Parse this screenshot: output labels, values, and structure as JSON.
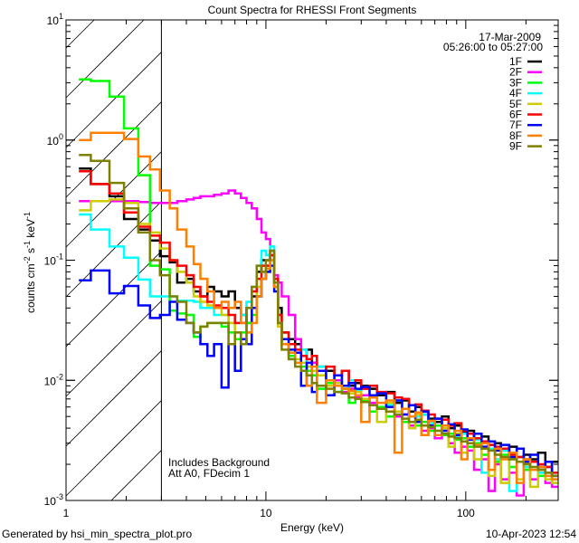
{
  "chart_data": {
    "type": "line",
    "title": "Count Spectra for RHESSI Front Segments",
    "xlabel": "Energy (keV)",
    "ylabel": {
      "base": "counts cm",
      "e1": "-2",
      "s": " s",
      "e2": "-1",
      "k": " keV",
      "e3": "-1"
    },
    "xscale": "log",
    "yscale": "log",
    "xlim": [
      1,
      290
    ],
    "ylim": [
      0.001,
      10
    ],
    "x_ticks": [
      {
        "value": 1,
        "label": "1"
      },
      {
        "value": 10,
        "label": "10"
      },
      {
        "value": 100,
        "label": "100"
      }
    ],
    "y_ticks": [
      {
        "value": 10,
        "base": "10",
        "exp": "1"
      },
      {
        "value": 1,
        "base": "10",
        "exp": "0"
      },
      {
        "value": 0.1,
        "base": "10",
        "exp": "-1"
      },
      {
        "value": 0.01,
        "base": "10",
        "exp": "-2"
      },
      {
        "value": 0.001,
        "base": "10",
        "exp": "-3"
      }
    ],
    "legend_placement": "top-right",
    "date": "17-Mar-2009",
    "time_range": "05:26:00 to 05:27:00",
    "annotations": [
      "Includes Background",
      "Att A0, FDecim 1"
    ],
    "excluded_region_keV": [
      1,
      3
    ],
    "energy_edges": [
      1.16,
      1.33,
      1.65,
      1.95,
      2.3,
      2.63,
      2.95,
      3.3,
      3.6,
      4.0,
      4.35,
      4.7,
      5.1,
      5.5,
      6.0,
      6.5,
      7.0,
      7.5,
      8.0,
      8.5,
      9.0,
      9.5,
      10.0,
      10.5,
      11.0,
      11.5,
      12,
      13,
      14,
      15,
      16,
      17,
      18,
      20,
      22,
      24,
      26,
      28,
      30,
      33,
      36,
      40,
      44,
      48,
      52,
      56,
      60,
      65,
      70,
      76,
      82,
      88,
      95,
      102,
      110,
      120,
      130,
      140,
      150,
      165,
      180,
      195,
      210,
      230,
      250,
      270,
      290
    ],
    "series": [
      {
        "name": "1F",
        "color": "#000000",
        "values": [
          0.58,
          0.43,
          0.34,
          0.22,
          0.18,
          0.146,
          0.108,
          0.096,
          0.065,
          0.07,
          0.055,
          0.05,
          0.06,
          0.055,
          0.05,
          0.055,
          0.04,
          0.035,
          0.03,
          0.05,
          0.08,
          0.1,
          0.1,
          0.12,
          0.07,
          0.04,
          0.025,
          0.022,
          0.02,
          0.016,
          0.018,
          0.014,
          0.013,
          0.012,
          0.011,
          0.012,
          0.009,
          0.0095,
          0.009,
          0.0085,
          0.0075,
          0.008,
          0.0065,
          0.0068,
          0.0055,
          0.006,
          0.0052,
          0.0048,
          0.0045,
          0.005,
          0.004,
          0.0042,
          0.0037,
          0.0038,
          0.0033,
          0.0034,
          0.0029,
          0.003,
          0.0026,
          0.0028,
          0.0023,
          0.0024,
          0.0022,
          0.0025,
          0.0019,
          0.0021
        ]
      },
      {
        "name": "2F",
        "color": "#ff00ff",
        "values": [
          0.31,
          0.31,
          0.31,
          0.31,
          0.305,
          0.3,
          0.3,
          0.3,
          0.31,
          0.32,
          0.33,
          0.34,
          0.34,
          0.35,
          0.36,
          0.38,
          0.36,
          0.33,
          0.3,
          0.27,
          0.22,
          0.17,
          0.15,
          0.11,
          0.075,
          0.065,
          0.05,
          0.035,
          0.022,
          0.016,
          0.013,
          0.014,
          0.011,
          0.0095,
          0.01,
          0.008,
          0.0085,
          0.0072,
          0.0075,
          0.0065,
          0.006,
          0.0055,
          0.005,
          0.0052,
          0.0042,
          0.0045,
          0.0038,
          0.004,
          0.0033,
          0.0035,
          0.003,
          0.0025,
          0.0028,
          0.0026,
          0.0018,
          0.0022,
          0.0012,
          0.002,
          0.0015,
          0.0017,
          0.0011,
          0.0018,
          0.0015,
          0.0017,
          0.0014,
          0.0013
        ]
      },
      {
        "name": "3F",
        "color": "#00ff00",
        "values": [
          3.2,
          3.1,
          2.3,
          1.25,
          0.51,
          0.09,
          0.084,
          0.038,
          0.036,
          0.035,
          0.023,
          0.028,
          0.03,
          0.03,
          0.028,
          0.025,
          0.022,
          0.025,
          0.03,
          0.035,
          0.05,
          0.07,
          0.08,
          0.1,
          0.06,
          0.03,
          0.02,
          0.016,
          0.014,
          0.013,
          0.012,
          0.011,
          0.0085,
          0.0095,
          0.008,
          0.0085,
          0.0065,
          0.0075,
          0.0068,
          0.0055,
          0.006,
          0.005,
          0.0055,
          0.0045,
          0.005,
          0.0042,
          0.0045,
          0.0038,
          0.0042,
          0.0035,
          0.0036,
          0.0032,
          0.0033,
          0.0028,
          0.003,
          0.0024,
          0.0027,
          0.0021,
          0.0024,
          0.0019,
          0.0021,
          0.0018,
          0.0019,
          0.0016,
          0.0017,
          0.0014
        ]
      },
      {
        "name": "4F",
        "color": "#00ffff",
        "values": [
          0.24,
          0.18,
          0.13,
          0.105,
          0.069,
          0.05,
          0.05,
          0.05,
          0.046,
          0.046,
          0.045,
          0.04,
          0.04,
          0.035,
          0.035,
          0.03,
          0.03,
          0.035,
          0.045,
          0.06,
          0.09,
          0.12,
          0.11,
          0.13,
          0.065,
          0.03,
          0.02,
          0.015,
          0.017,
          0.018,
          0.013,
          0.012,
          0.013,
          0.01,
          0.011,
          0.0085,
          0.01,
          0.0082,
          0.0088,
          0.0072,
          0.0078,
          0.0062,
          0.0068,
          0.0058,
          0.0062,
          0.005,
          0.0052,
          0.0044,
          0.0048,
          0.0038,
          0.0042,
          0.0034,
          0.0036,
          0.003,
          0.0032,
          0.0017,
          0.0027,
          0.0022,
          0.0026,
          0.0012,
          0.0023,
          0.0019,
          0.0021,
          0.0017,
          0.0019,
          0.0015
        ]
      },
      {
        "name": "5F",
        "color": "#cccc00",
        "values": [
          0.26,
          0.31,
          0.32,
          0.3,
          0.2,
          0.17,
          0.125,
          0.1,
          0.08,
          0.065,
          0.05,
          0.045,
          0.042,
          0.04,
          0.035,
          0.03,
          0.025,
          0.02,
          0.025,
          0.04,
          0.06,
          0.08,
          0.09,
          0.11,
          0.06,
          0.028,
          0.02,
          0.017,
          0.015,
          0.014,
          0.013,
          0.012,
          0.011,
          0.009,
          0.0095,
          0.0085,
          0.0078,
          0.008,
          0.007,
          0.0072,
          0.0045,
          0.0065,
          0.0055,
          0.0058,
          0.004,
          0.0052,
          0.0035,
          0.0046,
          0.0038,
          0.004,
          0.0028,
          0.0036,
          0.0025,
          0.0032,
          0.0022,
          0.0028,
          0.0016,
          0.0024,
          0.0014,
          0.0022,
          0.0015,
          0.002,
          0.0013,
          0.0018,
          0.0015,
          0.0014
        ]
      },
      {
        "name": "6F",
        "color": "#ff0000",
        "values": [
          0.55,
          0.43,
          0.36,
          0.25,
          0.19,
          0.16,
          0.14,
          0.1,
          0.09,
          0.075,
          0.06,
          0.05,
          0.045,
          0.042,
          0.04,
          0.035,
          0.03,
          0.03,
          0.04,
          0.055,
          0.07,
          0.09,
          0.09,
          0.11,
          0.07,
          0.035,
          0.025,
          0.02,
          0.018,
          0.016,
          0.015,
          0.016,
          0.012,
          0.013,
          0.011,
          0.012,
          0.0095,
          0.01,
          0.0085,
          0.009,
          0.008,
          0.0078,
          0.0072,
          0.007,
          0.0062,
          0.0063,
          0.0056,
          0.0052,
          0.0048,
          0.0047,
          0.0042,
          0.0044,
          0.0038,
          0.0036,
          0.0033,
          0.0031,
          0.0029,
          0.0028,
          0.0027,
          0.0024,
          0.0023,
          0.0022,
          0.0021,
          0.002,
          0.0019,
          0.0017
        ]
      },
      {
        "name": "7F",
        "color": "#0000ff",
        "values": [
          0.068,
          0.082,
          0.053,
          0.061,
          0.042,
          0.033,
          0.035,
          0.045,
          0.032,
          0.03,
          0.025,
          0.02,
          0.016,
          0.02,
          0.0087,
          0.02,
          0.012,
          0.022,
          0.02,
          0.04,
          0.05,
          0.07,
          0.08,
          0.09,
          0.055,
          0.03,
          0.022,
          0.018,
          0.017,
          0.009,
          0.014,
          0.008,
          0.012,
          0.0075,
          0.011,
          0.009,
          0.0095,
          0.0085,
          0.0088,
          0.0075,
          0.0078,
          0.006,
          0.0068,
          0.0052,
          0.0062,
          0.0045,
          0.0055,
          0.0042,
          0.0048,
          0.0038,
          0.0043,
          0.0035,
          0.0039,
          0.0032,
          0.0036,
          0.0028,
          0.0031,
          0.0026,
          0.0029,
          0.0023,
          0.0027,
          0.0021,
          0.0024,
          0.0019,
          0.0021,
          0.0016
        ]
      },
      {
        "name": "8F",
        "color": "#ff8000",
        "values": [
          1.0,
          1.15,
          1.15,
          1.02,
          0.73,
          0.57,
          0.38,
          0.27,
          0.18,
          0.13,
          0.093,
          0.07,
          0.055,
          0.04,
          0.045,
          0.04,
          0.045,
          0.03,
          0.025,
          0.03,
          0.05,
          0.07,
          0.085,
          0.1,
          0.06,
          0.03,
          0.02,
          0.017,
          0.014,
          0.012,
          0.009,
          0.013,
          0.0065,
          0.01,
          0.009,
          0.0085,
          0.0082,
          0.0075,
          0.0045,
          0.0072,
          0.0065,
          0.0068,
          0.0025,
          0.0058,
          0.005,
          0.0054,
          0.0035,
          0.0046,
          0.0035,
          0.0042,
          0.0034,
          0.0038,
          0.0022,
          0.0033,
          0.0029,
          0.003,
          0.0018,
          0.0027,
          0.0022,
          0.0025,
          0.0014,
          0.0022,
          0.0018,
          0.0019,
          0.0016,
          0.0015
        ]
      },
      {
        "name": "9F",
        "color": "#808000",
        "values": [
          0.75,
          0.67,
          0.44,
          0.27,
          0.17,
          0.1,
          0.075,
          0.05,
          0.045,
          0.03,
          0.025,
          0.028,
          0.03,
          0.03,
          0.03,
          0.02,
          0.025,
          0.02,
          0.04,
          0.06,
          0.09,
          0.08,
          0.1,
          0.12,
          0.065,
          0.03,
          0.018,
          0.015,
          0.013,
          0.012,
          0.011,
          0.0095,
          0.009,
          0.0085,
          0.008,
          0.0078,
          0.0072,
          0.007,
          0.0066,
          0.0062,
          0.0058,
          0.0055,
          0.0052,
          0.0048,
          0.0045,
          0.0047,
          0.0042,
          0.0041,
          0.0038,
          0.0036,
          0.0034,
          0.0033,
          0.0031,
          0.003,
          0.0028,
          0.0027,
          0.0026,
          0.0024,
          0.0023,
          0.0022,
          0.0021,
          0.002,
          0.0019,
          0.0018,
          0.0017,
          0.0016
        ]
      }
    ]
  },
  "footer": {
    "generated_by": "Generated by hsi_min_spectra_plot.pro",
    "timestamp": "10-Apr-2023 12:54"
  }
}
